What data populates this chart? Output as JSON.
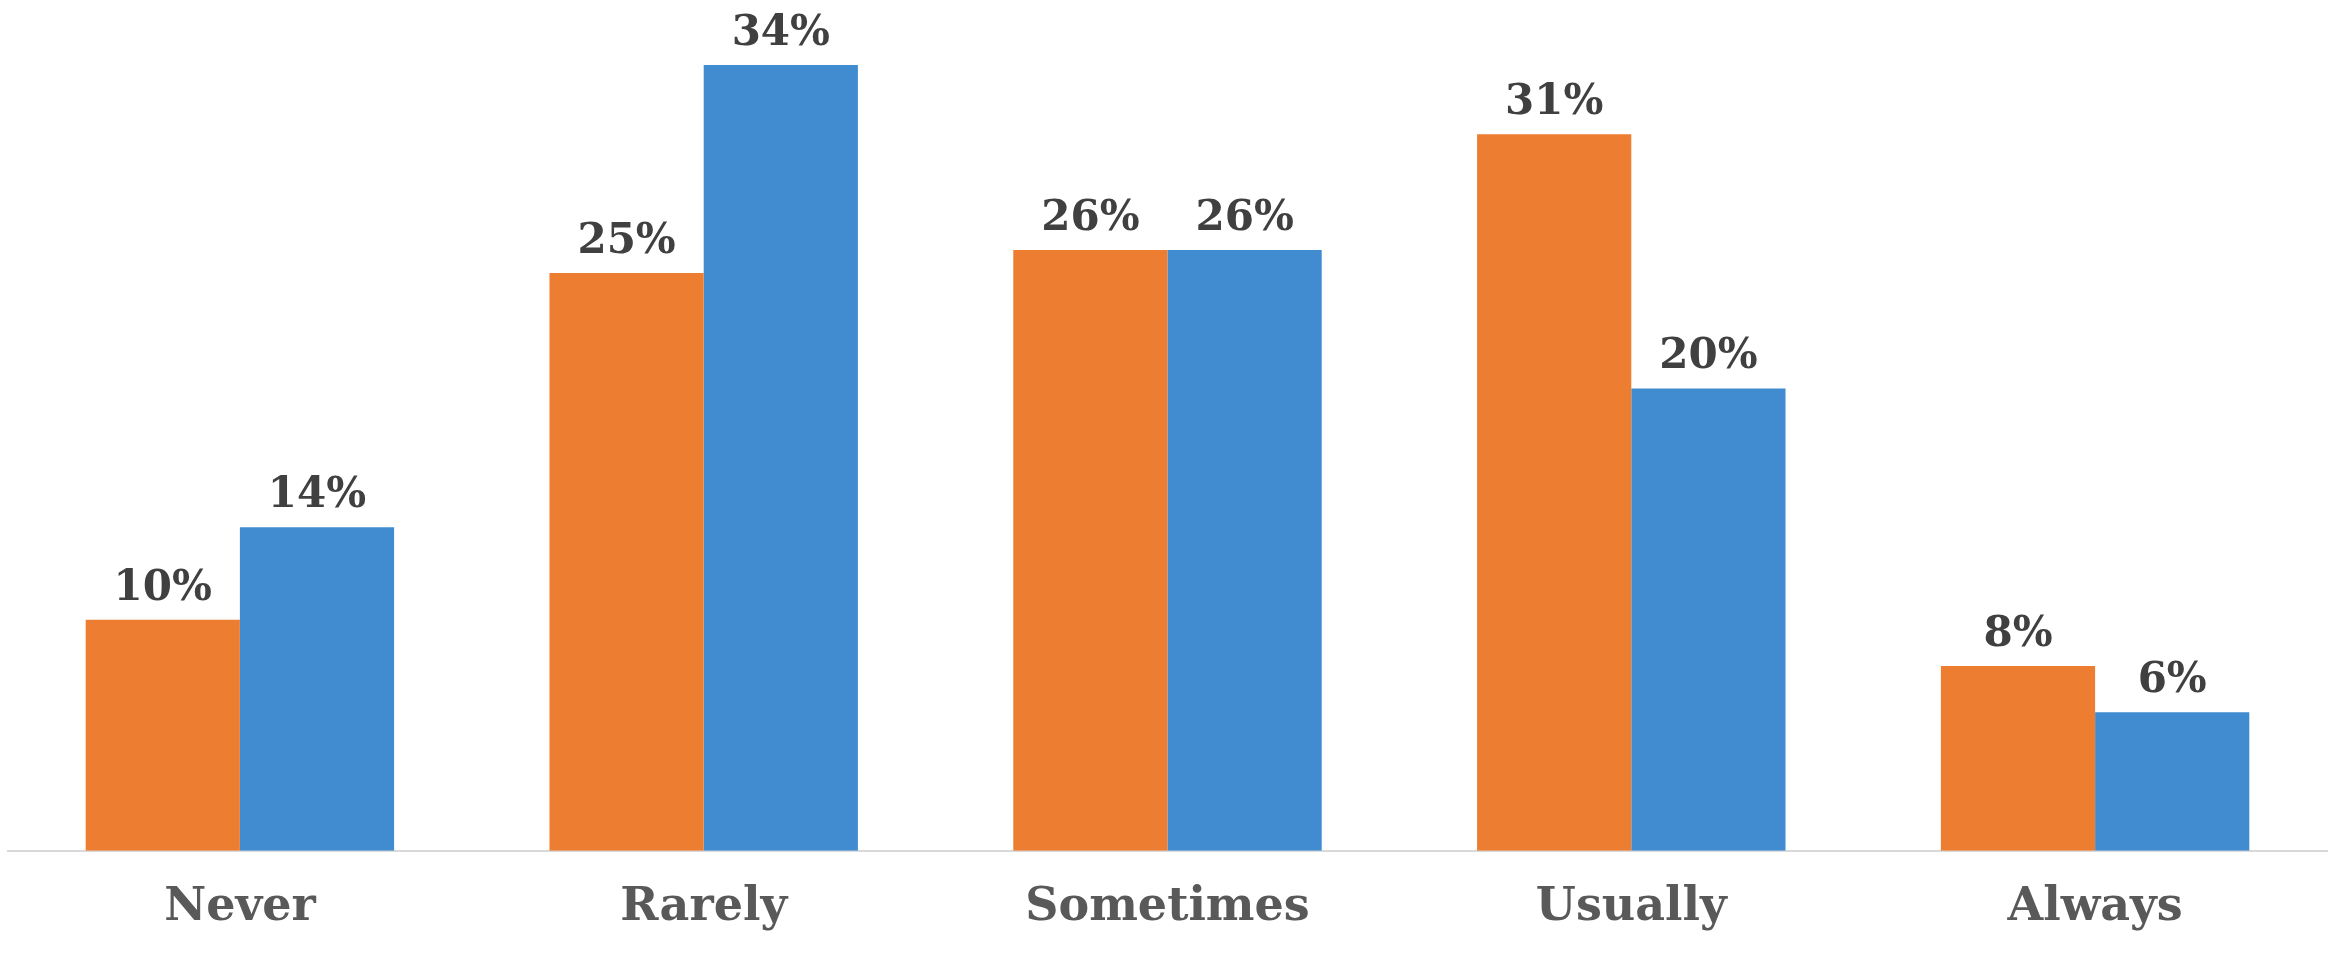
{
  "chart_data": {
    "type": "bar",
    "categories": [
      "Never",
      "Rarely",
      "Sometimes",
      "Usually",
      "Always"
    ],
    "series": [
      {
        "color": "#ed7d31",
        "values": [
          10,
          25,
          26,
          31,
          8
        ],
        "value_labels": [
          "10%",
          "25%",
          "26%",
          "31%",
          "8%"
        ]
      },
      {
        "color": "#418cd0",
        "values": [
          14,
          34,
          26,
          20,
          6
        ],
        "value_labels": [
          "14%",
          "34%",
          "26%",
          "20%",
          "6%"
        ]
      }
    ],
    "grid": false,
    "legend": false
  }
}
